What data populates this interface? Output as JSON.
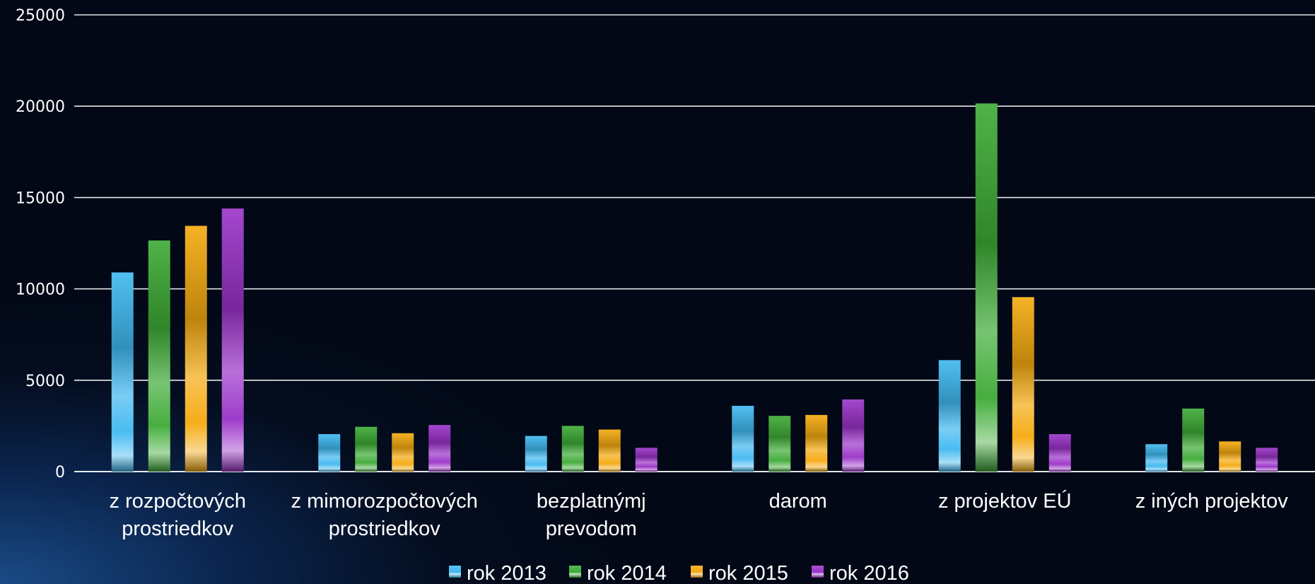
{
  "chart_data": {
    "type": "bar",
    "title": "",
    "xlabel": "",
    "ylabel": "",
    "ylim": [
      0,
      25000
    ],
    "yticks": [
      0,
      5000,
      10000,
      15000,
      20000,
      25000
    ],
    "grid": true,
    "legend_position": "bottom",
    "categories": [
      [
        "z rozpočtových",
        "prostriedkov"
      ],
      [
        "z mimorozpočtových",
        "prostriedkov"
      ],
      [
        "bezplatnýmj",
        "prevodom"
      ],
      [
        "darom"
      ],
      [
        "z projektov EÚ"
      ],
      [
        "z iných projektov"
      ]
    ],
    "series": [
      {
        "name": "rok 2013",
        "color": "#3fb8f0",
        "values": [
          10900,
          2050,
          1950,
          3600,
          6100,
          1500
        ]
      },
      {
        "name": "rok 2014",
        "color": "#3daa35",
        "values": [
          12650,
          2450,
          2500,
          3050,
          20150,
          3450
        ]
      },
      {
        "name": "rok 2015",
        "color": "#f4a90e",
        "values": [
          13450,
          2100,
          2300,
          3100,
          9550,
          1650
        ]
      },
      {
        "name": "rok 2016",
        "color": "#9a32c8",
        "values": [
          14400,
          2550,
          1300,
          3950,
          2050,
          1300
        ]
      }
    ]
  }
}
